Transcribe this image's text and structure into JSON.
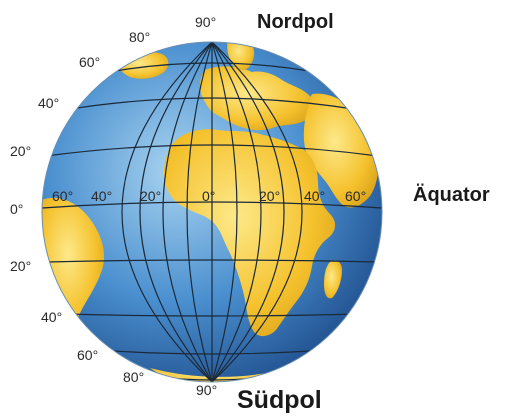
{
  "labels": {
    "north_pole": "Nordpol",
    "south_pole": "Südpol",
    "equator": "Äquator"
  },
  "latitude_ticks": {
    "top": "90°",
    "lat80": "80°",
    "lat60": "60°",
    "lat40": "40°",
    "lat20": "20°",
    "lat0": "0°",
    "lat20s": "20°",
    "lat40s": "40°",
    "lat60s": "60°",
    "lat80s": "80°",
    "bottom": "90°"
  },
  "longitude_ticks": [
    "60°",
    "40°",
    "20°",
    "0°",
    "20°",
    "40°",
    "60°"
  ],
  "colors": {
    "ocean": "#3f87c9",
    "ocean_dark": "#1f4f8c",
    "land": "#f5c22e",
    "land_light": "#fde27a",
    "grid": "#1b2a3a",
    "text": "#1a1a1a"
  }
}
